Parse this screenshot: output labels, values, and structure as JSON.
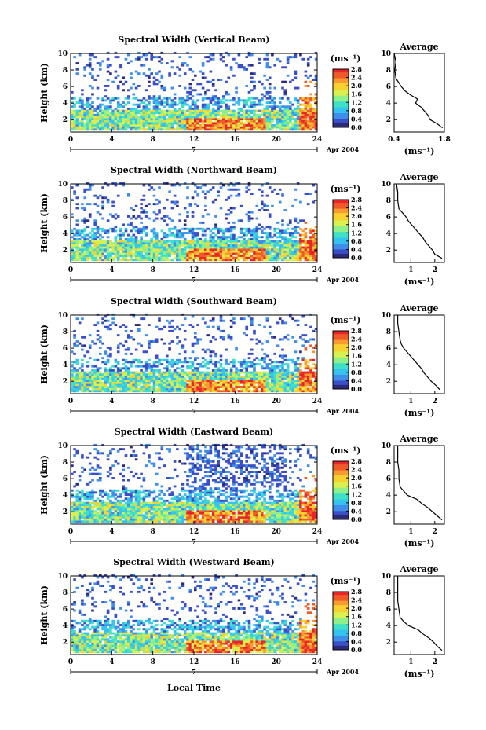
{
  "figure": {
    "xlabel": "Local Time",
    "colorbar_unit": "(ms⁻¹)",
    "avg_xlabel": "(ms⁻¹)",
    "avg_title": "Average",
    "ylabel": "Height (km)",
    "date_day": "7",
    "date_month": "Apr 2004"
  },
  "chart_data": [
    {
      "type": "heatmap",
      "title": "Spectral Width (Vertical Beam)",
      "xlabel": "Local Time",
      "ylabel": "Height (km)",
      "x_ticks": [
        0,
        4,
        8,
        12,
        16,
        20,
        24
      ],
      "y_ticks": [
        2,
        4,
        6,
        8,
        10
      ],
      "xlim": [
        0,
        24
      ],
      "ylim": [
        0.5,
        10
      ],
      "colorbar": {
        "ticks": [
          0.0,
          0.4,
          0.8,
          1.2,
          1.6,
          2.0,
          2.4,
          2.8
        ],
        "unit": "(ms⁻¹)"
      },
      "average_profile": {
        "title": "Average",
        "x_ticks": [
          0.4,
          1.8
        ],
        "xlim": [
          0.4,
          1.8
        ],
        "heights": [
          1.0,
          1.5,
          2.0,
          2.5,
          3.0,
          3.5,
          4.0,
          4.5,
          5.0,
          5.5,
          6.0,
          7.0,
          8.0,
          9.0,
          10.0
        ],
        "values": [
          1.75,
          1.6,
          1.4,
          1.35,
          1.25,
          1.15,
          1.0,
          1.05,
          0.85,
          0.7,
          0.6,
          0.45,
          0.42,
          0.45,
          0.4
        ]
      }
    },
    {
      "type": "heatmap",
      "title": "Spectral Width (Northward Beam)",
      "xlabel": "Local Time",
      "ylabel": "Height (km)",
      "x_ticks": [
        0,
        4,
        8,
        12,
        16,
        20,
        24
      ],
      "y_ticks": [
        2,
        4,
        6,
        8,
        10
      ],
      "xlim": [
        0,
        24
      ],
      "ylim": [
        0.5,
        10
      ],
      "colorbar": {
        "ticks": [
          0.0,
          0.4,
          0.8,
          1.2,
          1.6,
          2.0,
          2.4,
          2.8
        ],
        "unit": "(ms⁻¹)"
      },
      "average_profile": {
        "title": "Average",
        "x_ticks": [
          1,
          2
        ],
        "xlim": [
          0.3,
          2.4
        ],
        "heights": [
          1.0,
          1.5,
          2.0,
          2.5,
          3.0,
          3.5,
          4.0,
          4.5,
          5.0,
          5.5,
          6.0,
          6.5,
          7.0,
          8.0,
          9.0,
          10.0
        ],
        "values": [
          2.3,
          2.0,
          1.9,
          1.75,
          1.6,
          1.5,
          1.35,
          1.2,
          1.05,
          0.9,
          0.8,
          0.65,
          0.5,
          0.45,
          0.45,
          0.4
        ]
      }
    },
    {
      "type": "heatmap",
      "title": "Spectral Width (Southward Beam)",
      "xlabel": "Local Time",
      "ylabel": "Height (km)",
      "x_ticks": [
        0,
        4,
        8,
        12,
        16,
        20,
        24
      ],
      "y_ticks": [
        2,
        4,
        6,
        8,
        10
      ],
      "xlim": [
        0,
        24
      ],
      "ylim": [
        0.5,
        10
      ],
      "colorbar": {
        "ticks": [
          0.0,
          0.4,
          0.8,
          1.2,
          1.6,
          2.0,
          2.4,
          2.8
        ],
        "unit": "(ms⁻¹)"
      },
      "average_profile": {
        "title": "Average",
        "x_ticks": [
          1,
          2
        ],
        "xlim": [
          0.3,
          2.4
        ],
        "heights": [
          1.0,
          1.5,
          2.0,
          2.5,
          3.0,
          3.5,
          4.0,
          4.5,
          5.0,
          5.5,
          6.0,
          6.5,
          7.0,
          8.0,
          9.0,
          10.0
        ],
        "values": [
          2.2,
          2.05,
          1.85,
          1.7,
          1.55,
          1.45,
          1.3,
          1.15,
          1.0,
          0.85,
          0.7,
          0.6,
          0.55,
          0.5,
          0.45,
          0.45
        ]
      }
    },
    {
      "type": "heatmap",
      "title": "Spectral Width (Eastward Beam)",
      "xlabel": "Local Time",
      "ylabel": "Height (km)",
      "x_ticks": [
        0,
        4,
        8,
        12,
        16,
        20,
        24
      ],
      "y_ticks": [
        2,
        4,
        6,
        8,
        10
      ],
      "xlim": [
        0,
        24
      ],
      "ylim": [
        0.5,
        10
      ],
      "colorbar": {
        "ticks": [
          0.0,
          0.4,
          0.8,
          1.2,
          1.6,
          2.0,
          2.4,
          2.8
        ],
        "unit": "(ms⁻¹)"
      },
      "average_profile": {
        "title": "Average",
        "x_ticks": [
          1,
          2
        ],
        "xlim": [
          0.3,
          2.4
        ],
        "heights": [
          1.0,
          1.5,
          2.0,
          2.5,
          3.0,
          3.5,
          4.0,
          4.5,
          5.0,
          6.0,
          7.0,
          8.0,
          9.0,
          10.0
        ],
        "values": [
          2.3,
          2.1,
          1.9,
          1.7,
          1.45,
          1.25,
          0.85,
          0.7,
          0.55,
          0.5,
          0.5,
          0.45,
          0.45,
          0.45
        ]
      }
    },
    {
      "type": "heatmap",
      "title": "Spectral Width (Westward Beam)",
      "xlabel": "Local Time",
      "ylabel": "Height (km)",
      "x_ticks": [
        0,
        4,
        8,
        12,
        16,
        20,
        24
      ],
      "y_ticks": [
        2,
        4,
        6,
        8,
        10
      ],
      "xlim": [
        0,
        24
      ],
      "ylim": [
        0.5,
        10
      ],
      "colorbar": {
        "ticks": [
          0.0,
          0.4,
          0.8,
          1.2,
          1.6,
          2.0,
          2.4,
          2.8
        ],
        "unit": "(ms⁻¹)"
      },
      "average_profile": {
        "title": "Average",
        "x_ticks": [
          1,
          2
        ],
        "xlim": [
          0.3,
          2.4
        ],
        "heights": [
          1.0,
          1.5,
          2.0,
          2.5,
          3.0,
          3.5,
          4.0,
          4.5,
          5.0,
          6.0,
          7.0,
          8.0,
          9.0,
          10.0
        ],
        "values": [
          2.3,
          2.1,
          1.95,
          1.75,
          1.5,
          1.3,
          0.9,
          0.7,
          0.55,
          0.5,
          0.45,
          0.45,
          0.45,
          0.45
        ]
      }
    }
  ]
}
